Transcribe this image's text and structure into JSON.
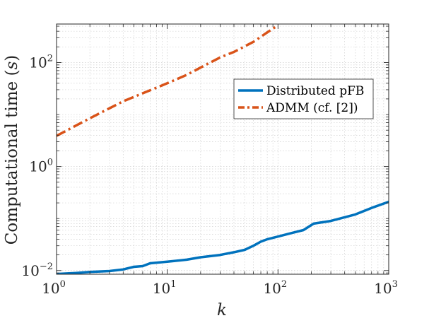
{
  "chart_data": {
    "type": "line",
    "xlabel": "k",
    "ylabel": "Computational time",
    "ylabel_unit": "s",
    "xscale": "log",
    "yscale": "log",
    "xlim": [
      1,
      1000
    ],
    "ylim": [
      0.0085,
      550
    ],
    "grid": true,
    "legend_position": "center-right",
    "x_ticks": [
      {
        "base": "10",
        "exp": "0",
        "value": 1
      },
      {
        "base": "10",
        "exp": "1",
        "value": 10
      },
      {
        "base": "10",
        "exp": "2",
        "value": 100
      },
      {
        "base": "10",
        "exp": "3",
        "value": 1000
      }
    ],
    "y_ticks": [
      {
        "base": "10",
        "exp": "−2",
        "value": 0.01
      },
      {
        "base": "10",
        "exp": "0",
        "value": 1
      },
      {
        "base": "10",
        "exp": "2",
        "value": 100
      }
    ],
    "series": [
      {
        "name": "Distributed pFB",
        "color": "#0072BD",
        "dash": "solid",
        "points": [
          [
            1,
            0.0086
          ],
          [
            1.5,
            0.009
          ],
          [
            2,
            0.0094
          ],
          [
            3,
            0.0098
          ],
          [
            4,
            0.0105
          ],
          [
            5,
            0.0118
          ],
          [
            6,
            0.0122
          ],
          [
            7,
            0.0138
          ],
          [
            10,
            0.0148
          ],
          [
            15,
            0.0162
          ],
          [
            20,
            0.018
          ],
          [
            30,
            0.02
          ],
          [
            40,
            0.0225
          ],
          [
            50,
            0.025
          ],
          [
            60,
            0.03
          ],
          [
            70,
            0.036
          ],
          [
            80,
            0.04
          ],
          [
            100,
            0.045
          ],
          [
            130,
            0.052
          ],
          [
            170,
            0.06
          ],
          [
            210,
            0.08
          ],
          [
            300,
            0.09
          ],
          [
            500,
            0.12
          ],
          [
            700,
            0.16
          ],
          [
            1000,
            0.21
          ]
        ]
      },
      {
        "name": "ADMM (cf. [2])",
        "color": "#D95319",
        "dash": "dashdot",
        "points": [
          [
            1,
            3.9
          ],
          [
            2,
            8.5
          ],
          [
            4,
            18
          ],
          [
            10,
            40
          ],
          [
            15,
            58
          ],
          [
            20,
            80
          ],
          [
            30,
            125
          ],
          [
            40,
            160
          ],
          [
            60,
            250
          ],
          [
            80,
            380
          ],
          [
            100,
            520
          ]
        ]
      }
    ]
  }
}
